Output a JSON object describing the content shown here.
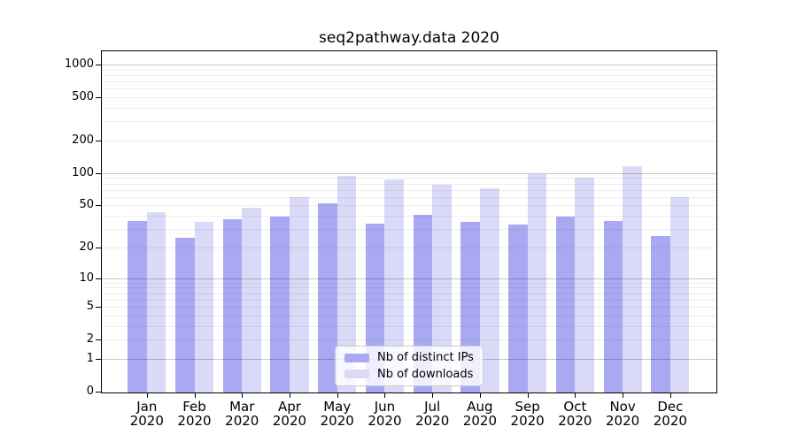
{
  "title": "seq2pathway.data 2020",
  "legend": {
    "items": [
      {
        "label": "Nb of distinct IPs",
        "color": "#a9a9f3"
      },
      {
        "label": "Nb of downloads",
        "color": "#dadaf8"
      }
    ]
  },
  "y_axis": {
    "tick_labels": [
      "1000",
      "500",
      "200",
      "100",
      "50",
      "20",
      "10",
      "5",
      "2",
      "1",
      "0"
    ]
  },
  "x_axis": {
    "tick_labels": [
      "Jan 2020",
      "Feb 2020",
      "Mar 2020",
      "Apr 2020",
      "May 2020",
      "Jun 2020",
      "Jul 2020",
      "Aug 2020",
      "Sep 2020",
      "Oct 2020",
      "Nov 2020",
      "Dec 2020"
    ]
  },
  "chart_data": {
    "type": "bar",
    "title": "seq2pathway.data 2020",
    "categories": [
      "Jan 2020",
      "Feb 2020",
      "Mar 2020",
      "Apr 2020",
      "May 2020",
      "Jun 2020",
      "Jul 2020",
      "Aug 2020",
      "Sep 2020",
      "Oct 2020",
      "Nov 2020",
      "Dec 2020"
    ],
    "series": [
      {
        "name": "Nb of distinct IPs",
        "color": "#a9a9f3",
        "values": [
          36,
          25,
          37,
          39,
          52,
          34,
          41,
          35,
          33,
          39,
          36,
          26
        ]
      },
      {
        "name": "Nb of downloads",
        "color": "#dadaf8",
        "values": [
          43,
          35,
          48,
          60,
          94,
          88,
          78,
          73,
          97,
          90,
          115,
          60
        ]
      }
    ],
    "yscale": "log10(1+y)",
    "yticks": [
      1000,
      500,
      200,
      100,
      50,
      20,
      10,
      5,
      2,
      1,
      0
    ],
    "minor_grid_values": [
      2,
      3,
      4,
      5,
      6,
      7,
      8,
      9,
      20,
      30,
      40,
      50,
      60,
      70,
      80,
      90,
      200,
      300,
      400,
      500,
      600,
      700,
      800,
      900
    ],
    "major_grid_values": [
      1,
      10,
      100,
      1000
    ],
    "ylim": [
      0,
      1300
    ],
    "grid": "major+minor",
    "legend_position": "lower-center-inside"
  },
  "colors": {
    "background": "#ffffff",
    "axis": "#000000",
    "bar_dark": "#a9a9f3",
    "bar_light": "#dadaf8",
    "major_grid": "rgba(0,0,0,0.22)",
    "minor_grid": "rgba(0,0,0,0.07)"
  }
}
